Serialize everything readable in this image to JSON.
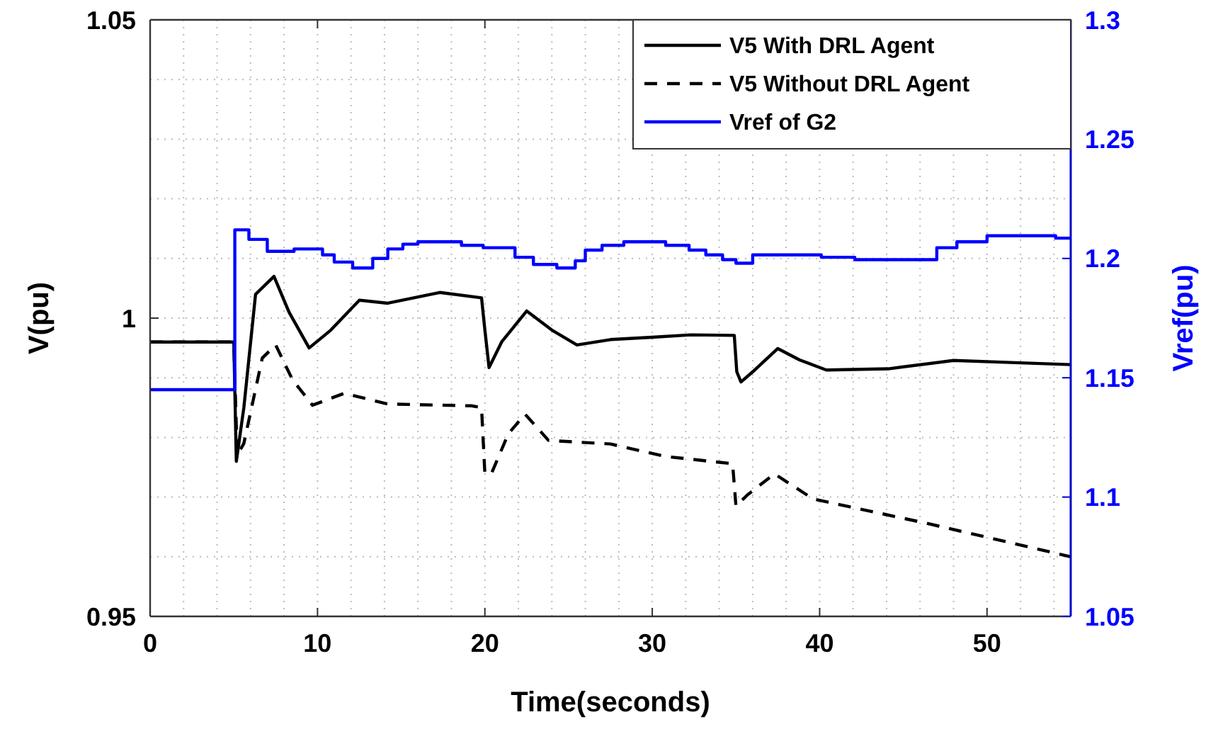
{
  "chart_data": {
    "type": "line",
    "xlabel": "Time(seconds)",
    "ylabel": "V(pu)",
    "y2label": "Vref(pu)",
    "xlim": [
      0,
      55
    ],
    "xticks": [
      0,
      {
        "value": 2,
        "label": null
      },
      {
        "value": 4,
        "label": null
      },
      {
        "value": 6,
        "label": null
      },
      {
        "value": 8,
        "label": null
      },
      10,
      {
        "value": 12,
        "label": null
      },
      {
        "value": 14,
        "label": null
      },
      {
        "value": 16,
        "label": null
      },
      {
        "value": 18,
        "label": null
      },
      20,
      {
        "value": 22,
        "label": null
      },
      {
        "value": 24,
        "label": null
      },
      {
        "value": 26,
        "label": null
      },
      {
        "value": 28,
        "label": null
      },
      30,
      {
        "value": 32,
        "label": null
      },
      {
        "value": 34,
        "label": null
      },
      {
        "value": 36,
        "label": null
      },
      {
        "value": 38,
        "label": null
      },
      40,
      {
        "value": 42,
        "label": null
      },
      {
        "value": 44,
        "label": null
      },
      {
        "value": 46,
        "label": null
      },
      {
        "value": 48,
        "label": null
      },
      50,
      {
        "value": 52,
        "label": null
      },
      {
        "value": 54,
        "label": null
      }
    ],
    "ylim": [
      0.95,
      1.05
    ],
    "yticks": [
      0.95,
      {
        "value": 0.96,
        "label": null
      },
      {
        "value": 0.97,
        "label": null
      },
      {
        "value": 0.98,
        "label": null
      },
      {
        "value": 0.99,
        "label": null
      },
      1,
      {
        "value": 1.01,
        "label": null
      },
      {
        "value": 1.02,
        "label": null
      },
      {
        "value": 1.03,
        "label": null
      },
      {
        "value": 1.04,
        "label": null
      },
      1.05
    ],
    "y2lim": [
      1.05,
      1.3
    ],
    "y2ticks": [
      1.05,
      1.1,
      1.15,
      1.2,
      1.25,
      1.3
    ],
    "grid": true,
    "legend": "top right",
    "series": [
      {
        "name": "V5 With DRL Agent",
        "color": "#000000",
        "line_style": "solid",
        "x": [
          0,
          5.0,
          5.15,
          5.6,
          6.3,
          7.4,
          8.3,
          9.5,
          10.8,
          12.5,
          14.2,
          17.3,
          19.8,
          20.0,
          20.25,
          21.0,
          22.5,
          24.0,
          25.5,
          27.5,
          30.0,
          32.3,
          34.9,
          35.05,
          35.3,
          36.0,
          37.5,
          38.8,
          40.4,
          44.1,
          48.0,
          52.0,
          55
        ],
        "values": [
          0.996,
          0.996,
          0.976,
          0.985,
          1.004,
          1.007,
          1.001,
          0.995,
          0.998,
          1.003,
          1.0025,
          1.0043,
          1.0034,
          0.998,
          0.9917,
          0.996,
          1.0012,
          0.998,
          0.9955,
          0.9964,
          0.9968,
          0.9972,
          0.9971,
          0.991,
          0.9893,
          0.991,
          0.9949,
          0.993,
          0.9913,
          0.9915,
          0.9929,
          0.9925,
          0.9922
        ]
      },
      {
        "name": "V5 Without DRL Agent",
        "color": "#000000",
        "line_style": "dashed",
        "x": [
          0,
          5.0,
          5.2,
          5.6,
          6.7,
          7.5,
          8.5,
          9.7,
          11.6,
          14.2,
          19.2,
          19.8,
          20.0,
          20.4,
          21.4,
          22.4,
          23.8,
          27.5,
          30.8,
          34.8,
          35.0,
          35.7,
          37.3,
          39.6,
          46.4,
          55
        ],
        "values": [
          0.996,
          0.996,
          0.977,
          0.979,
          0.9933,
          0.9955,
          0.9897,
          0.9854,
          0.9874,
          0.9856,
          0.9853,
          0.985,
          0.9739,
          0.974,
          0.9806,
          0.9839,
          0.9795,
          0.9789,
          0.9768,
          0.9756,
          0.9685,
          0.9704,
          0.9739,
          0.9697,
          0.9656,
          0.96
        ]
      },
      {
        "name": "Vref of G2",
        "color": "#0000ff",
        "type": "step",
        "axis": "y2",
        "line_style": "solid",
        "x": [
          0,
          5.06,
          5.9,
          7.0,
          8.6,
          10.3,
          11.0,
          12.1,
          13.3,
          14.2,
          15.1,
          16.0,
          18.6,
          19.9,
          21.8,
          22.9,
          24.3,
          25.4,
          26.0,
          27.0,
          28.3,
          30.8,
          32.2,
          33.2,
          34.2,
          35.0,
          36.0,
          40.1,
          42.1,
          47.0,
          48.2,
          50.0,
          54.1,
          55
        ],
        "values": [
          1.145,
          1.212,
          1.208,
          1.203,
          1.204,
          1.2015,
          1.1985,
          1.196,
          1.2,
          1.204,
          1.206,
          1.207,
          1.2055,
          1.2045,
          1.2005,
          1.1975,
          1.196,
          1.199,
          1.2035,
          1.2055,
          1.207,
          1.2055,
          1.2035,
          1.2015,
          1.1995,
          1.198,
          1.2015,
          1.2005,
          1.1995,
          1.2045,
          1.207,
          1.2095,
          1.2085,
          1.2085
        ]
      }
    ]
  }
}
